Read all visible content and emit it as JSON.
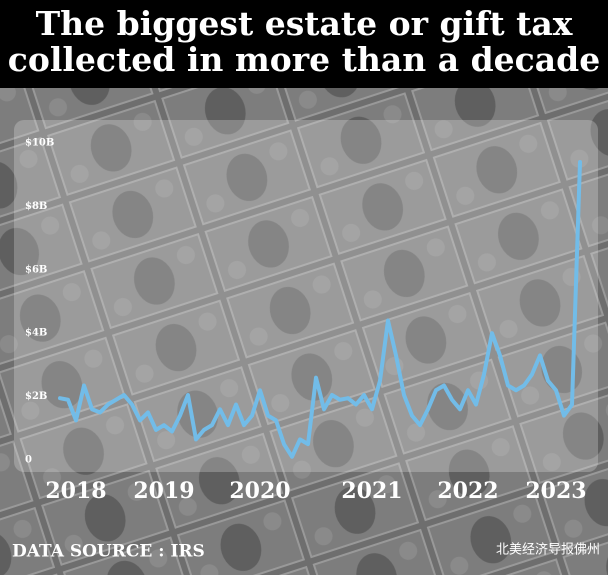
{
  "chart_data": {
    "type": "line",
    "title": [
      "The biggest estate or gift tax",
      "collected in more than a decade"
    ],
    "categories": [
      null,
      null,
      "2018",
      null,
      null,
      null,
      null,
      null,
      null,
      null,
      null,
      null,
      null,
      "2019",
      null,
      null,
      null,
      null,
      null,
      null,
      null,
      null,
      null,
      null,
      null,
      "2020",
      null,
      null,
      null,
      null,
      null,
      null,
      null,
      null,
      null,
      null,
      null,
      null,
      null,
      "2021",
      null,
      null,
      null,
      null,
      null,
      null,
      null,
      null,
      null,
      null,
      null,
      "2022",
      null,
      null,
      null,
      null,
      null,
      null,
      null,
      null,
      null,
      null,
      "2023",
      null,
      null,
      null
    ],
    "values": [
      1.95,
      1.9,
      1.25,
      2.35,
      1.6,
      1.5,
      1.75,
      1.9,
      2.05,
      1.75,
      1.25,
      1.5,
      0.95,
      1.1,
      0.9,
      1.4,
      2.05,
      0.65,
      0.95,
      1.1,
      1.6,
      1.1,
      1.75,
      1.1,
      1.4,
      2.2,
      1.4,
      1.25,
      0.5,
      0.1,
      0.65,
      0.5,
      2.6,
      1.6,
      2.05,
      1.9,
      1.95,
      1.75,
      2.05,
      1.6,
      2.5,
      4.4,
      3.3,
      2.05,
      1.4,
      1.1,
      1.6,
      2.2,
      2.35,
      1.9,
      1.6,
      2.2,
      1.75,
      2.7,
      4.0,
      3.3,
      2.35,
      2.2,
      2.35,
      2.7,
      3.3,
      2.5,
      2.2,
      1.4,
      1.75,
      9.4
    ],
    "color": "#72bce8",
    "ylim": [
      0,
      10
    ],
    "yticks": [
      0,
      {
        "value": 2,
        "label": "$2B"
      },
      {
        "value": 4,
        "label": "$4B"
      },
      {
        "value": 6,
        "label": "$6B"
      },
      {
        "value": 8,
        "label": "$8B"
      },
      {
        "value": 10,
        "label": "$10B"
      }
    ],
    "source": "DATA SOURCE : IRS",
    "watermark": "北美经济导报佛州"
  }
}
